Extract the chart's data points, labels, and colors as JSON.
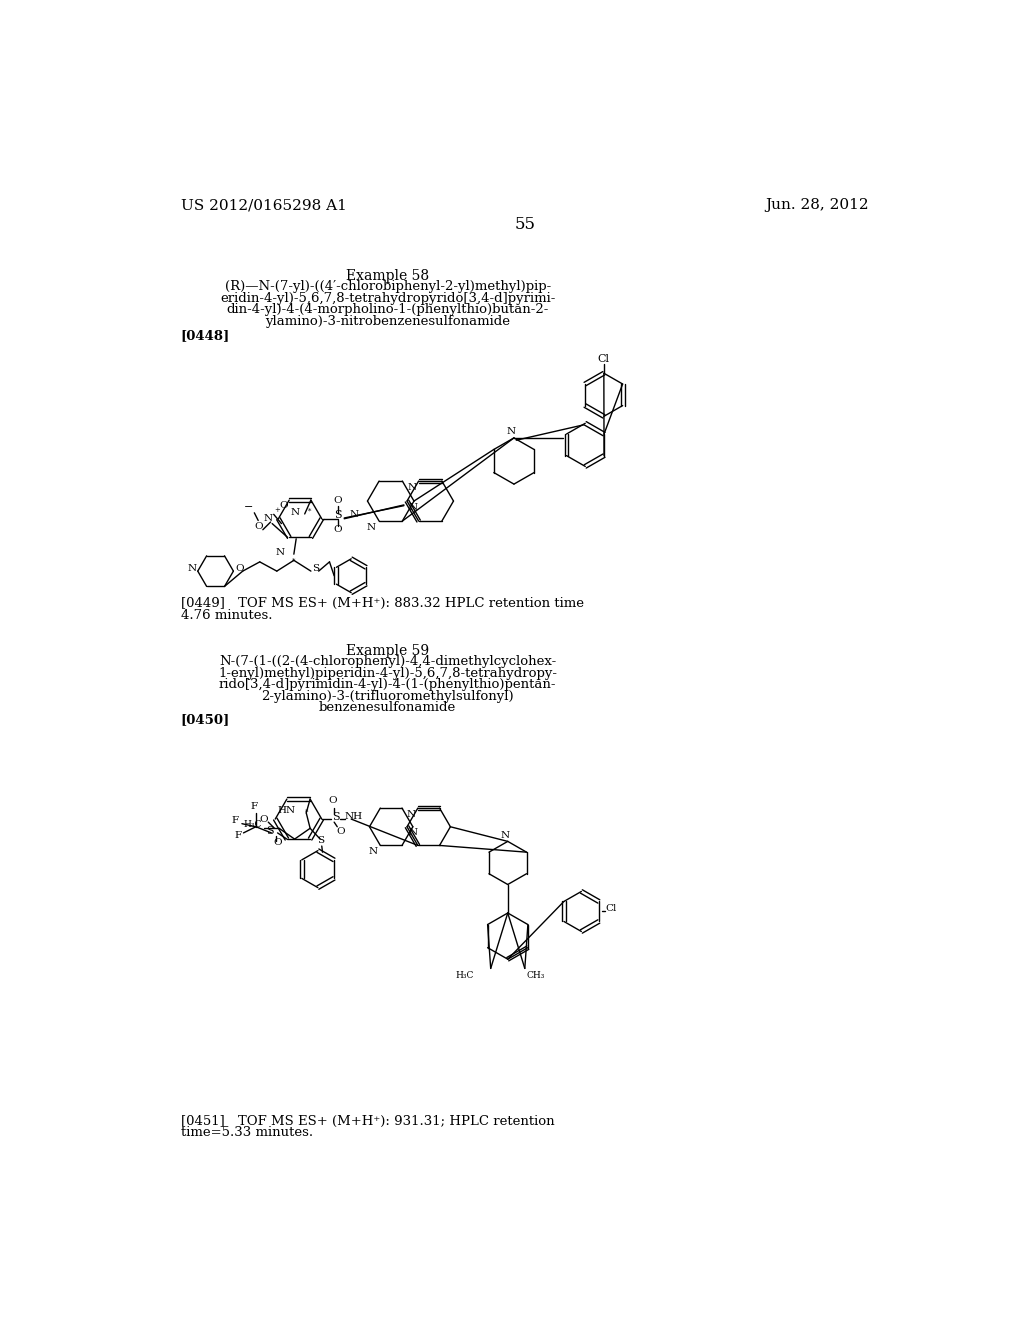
{
  "bg_color": "#ffffff",
  "header_left": "US 2012/0165298 A1",
  "header_right": "Jun. 28, 2012",
  "page_number": "55",
  "example58_title": "Example 58",
  "example58_line1": "(R)—N-(7-yl)-((4′-chlorobiphenyl-2-yl)methyl)pip-",
  "example58_line2": "eridin-4-yl)-5,6,7,8-tetrahydropyrido[3,4-d]pyrimi-",
  "example58_line3": "din-4-yl)-4-(4-morpholino-1-(phenylthio)butan-2-",
  "example58_line4": "ylamino)-3-nitrobenzenesulfonamide",
  "ref0448": "[0448]",
  "ref0449_line1": "[0449] TOF MS ES+ (M+H⁺): 883.32 HPLC retention time",
  "ref0449_line2": "4.76 minutes.",
  "example59_title": "Example 59",
  "example59_line1": "N-(7-(1-((2-(4-chlorophenyl)-4,4-dimethylcyclohex-",
  "example59_line2": "1-enyl)methyl)piperidin-4-yl)-5,6,7,8-tetrahydropy-",
  "example59_line3": "rido[3,4-d]pyrimidin-4-yl)-4-(1-(phenylthio)pentan-",
  "example59_line4": "2-ylamino)-3-(trifluoromethylsulfonyl)",
  "example59_line5": "benzenesulfonamide",
  "ref0450": "[0450]",
  "ref0451_line1": "[0451] TOF MS ES+ (M+H⁺): 931.31; HPLC retention",
  "ref0451_line2": "time=5.33 minutes.",
  "font_size_header": 11,
  "font_size_page": 12,
  "font_size_body": 9.5,
  "font_size_ref": 9.5,
  "font_size_example_title": 10,
  "font_size_atom": 7.5,
  "font_size_atom_small": 6.5
}
